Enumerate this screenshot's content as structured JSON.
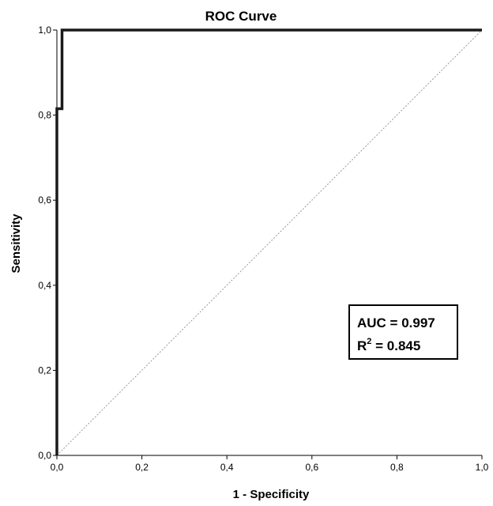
{
  "chart_data": {
    "type": "line",
    "title": "ROC Curve",
    "xlabel": "1 - Specificity",
    "ylabel": "Sensitivity",
    "xlim": [
      0,
      1
    ],
    "ylim": [
      0,
      1
    ],
    "x_ticks": [
      "0,0",
      "0,2",
      "0,4",
      "0,6",
      "0,8",
      "1,0"
    ],
    "y_ticks": [
      "0,0",
      "0,2",
      "0,4",
      "0,6",
      "0,8",
      "1,0"
    ],
    "series": [
      {
        "points": [
          [
            0,
            0
          ],
          [
            0,
            0.815
          ],
          [
            0.012,
            0.815
          ],
          [
            0.012,
            1.0
          ],
          [
            1.0,
            1.0
          ]
        ],
        "color": "#1a1a1a",
        "style": "solid"
      },
      {
        "points": [
          [
            0,
            0
          ],
          [
            1,
            1
          ]
        ],
        "color": "#9a9a9a",
        "style": "dotted"
      }
    ],
    "annotation": {
      "auc": "AUC = 0.997",
      "r_base": "R",
      "r_sup": "2",
      "r_rest": " = 0.845"
    },
    "grid": false
  }
}
